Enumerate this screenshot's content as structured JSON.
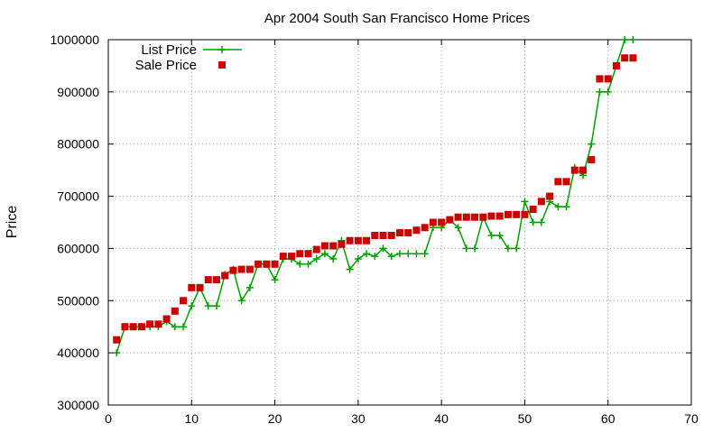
{
  "chart_data": {
    "type": "line",
    "title": "Apr 2004 South San Francisco Home Prices",
    "xlabel": "",
    "ylabel": "Price",
    "xlim": [
      0,
      70
    ],
    "ylim": [
      300000,
      1000000
    ],
    "x_ticks": [
      0,
      10,
      20,
      30,
      40,
      50,
      60,
      70
    ],
    "y_ticks": [
      300000,
      400000,
      500000,
      600000,
      700000,
      800000,
      900000,
      1000000
    ],
    "x_tick_labels": [
      "0",
      "10",
      "20",
      "30",
      "40",
      "50",
      "60",
      "70"
    ],
    "y_tick_labels": [
      "300000",
      "400000",
      "500000",
      "600000",
      "700000",
      "800000",
      "900000",
      "1000000"
    ],
    "grid": true,
    "legend_position": "top-left",
    "series": [
      {
        "name": "List Price",
        "style": "line-plus",
        "color": "#00a000",
        "x": [
          1,
          2,
          3,
          4,
          5,
          6,
          7,
          8,
          9,
          10,
          11,
          12,
          13,
          14,
          15,
          16,
          17,
          18,
          19,
          20,
          21,
          22,
          23,
          24,
          25,
          26,
          27,
          28,
          29,
          30,
          31,
          32,
          33,
          34,
          35,
          36,
          37,
          38,
          39,
          40,
          41,
          42,
          43,
          44,
          45,
          46,
          47,
          48,
          49,
          50,
          51,
          52,
          53,
          54,
          55,
          56,
          57,
          58,
          59,
          60,
          61,
          62,
          63
        ],
        "values": [
          400000,
          450000,
          450000,
          450000,
          450000,
          450000,
          460000,
          450000,
          450000,
          490000,
          525000,
          490000,
          490000,
          550000,
          560000,
          500000,
          525000,
          570000,
          570000,
          540000,
          580000,
          580000,
          570000,
          570000,
          580000,
          590000,
          580000,
          615000,
          560000,
          580000,
          590000,
          585000,
          600000,
          585000,
          590000,
          590000,
          590000,
          590000,
          640000,
          640000,
          655000,
          640000,
          600000,
          600000,
          660000,
          625000,
          625000,
          600000,
          600000,
          690000,
          650000,
          650000,
          690000,
          680000,
          680000,
          755000,
          740000,
          800000,
          900000,
          900000,
          950000,
          1000000,
          1000000
        ]
      },
      {
        "name": "Sale Price",
        "style": "squares",
        "color": "#cc0000",
        "x": [
          1,
          2,
          3,
          4,
          5,
          6,
          7,
          8,
          9,
          10,
          11,
          12,
          13,
          14,
          15,
          16,
          17,
          18,
          19,
          20,
          21,
          22,
          23,
          24,
          25,
          26,
          27,
          28,
          29,
          30,
          31,
          32,
          33,
          34,
          35,
          36,
          37,
          38,
          39,
          40,
          41,
          42,
          43,
          44,
          45,
          46,
          47,
          48,
          49,
          50,
          51,
          52,
          53,
          54,
          55,
          56,
          57,
          58,
          59,
          60,
          61,
          62,
          63
        ],
        "values": [
          425000,
          450000,
          450000,
          450000,
          455000,
          455000,
          465000,
          480000,
          500000,
          525000,
          525000,
          540000,
          540000,
          548000,
          558000,
          560000,
          560000,
          570000,
          570000,
          570000,
          585000,
          585000,
          590000,
          590000,
          598000,
          605000,
          605000,
          608000,
          615000,
          615000,
          615000,
          625000,
          625000,
          625000,
          630000,
          630000,
          635000,
          640000,
          650000,
          650000,
          655000,
          660000,
          660000,
          660000,
          660000,
          662000,
          662000,
          665000,
          665000,
          665000,
          675000,
          690000,
          700000,
          728000,
          728000,
          750000,
          750000,
          770000,
          925000,
          925000,
          950000,
          965000,
          965000
        ]
      }
    ]
  }
}
